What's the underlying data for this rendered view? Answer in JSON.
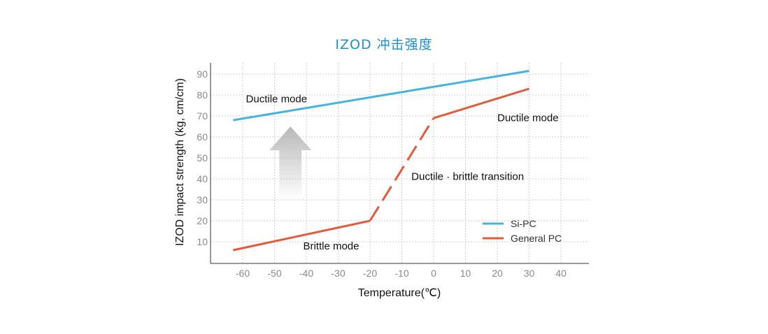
{
  "chart_data": {
    "type": "line",
    "title": "IZOD 冲击强度",
    "xlabel": "Temperature(℃)",
    "ylabel": "IZOD impact strength (kg, cm/cm)",
    "xlim": [
      -70,
      50
    ],
    "ylim": [
      0,
      95
    ],
    "x_ticks": [
      -60,
      -50,
      -40,
      -30,
      -20,
      -10,
      0,
      10,
      20,
      30,
      40
    ],
    "y_ticks": [
      10,
      20,
      30,
      40,
      50,
      60,
      70,
      80,
      90
    ],
    "grid": true,
    "legend_position": "bottom-right",
    "series": [
      {
        "name": "Si-PC",
        "color": "#45b3e0",
        "segments": [
          {
            "style": "solid",
            "points": [
              [
                -63,
                68
              ],
              [
                30,
                91.5
              ]
            ]
          }
        ]
      },
      {
        "name": "General PC",
        "color": "#e45a3a",
        "segments": [
          {
            "style": "solid",
            "points": [
              [
                -63,
                6
              ],
              [
                -20,
                20
              ]
            ]
          },
          {
            "style": "dashed",
            "points": [
              [
                -20,
                20
              ],
              [
                0,
                69
              ]
            ]
          },
          {
            "style": "solid",
            "points": [
              [
                0,
                69
              ],
              [
                30,
                83
              ]
            ]
          }
        ]
      }
    ],
    "annotations": [
      {
        "text": "Ductile mode",
        "x": -59,
        "y": 76.5
      },
      {
        "text": "Ductile mode",
        "x": 20,
        "y": 67.5
      },
      {
        "text": "Ductile · brittle transition",
        "x": -7,
        "y": 39.5
      },
      {
        "text": "Brittle mode",
        "x": -41,
        "y": 6.3
      }
    ],
    "arrow": {
      "direction": "up",
      "x": -45,
      "from_y": 30,
      "to_y": 65,
      "color": "#bdbdbd"
    }
  }
}
